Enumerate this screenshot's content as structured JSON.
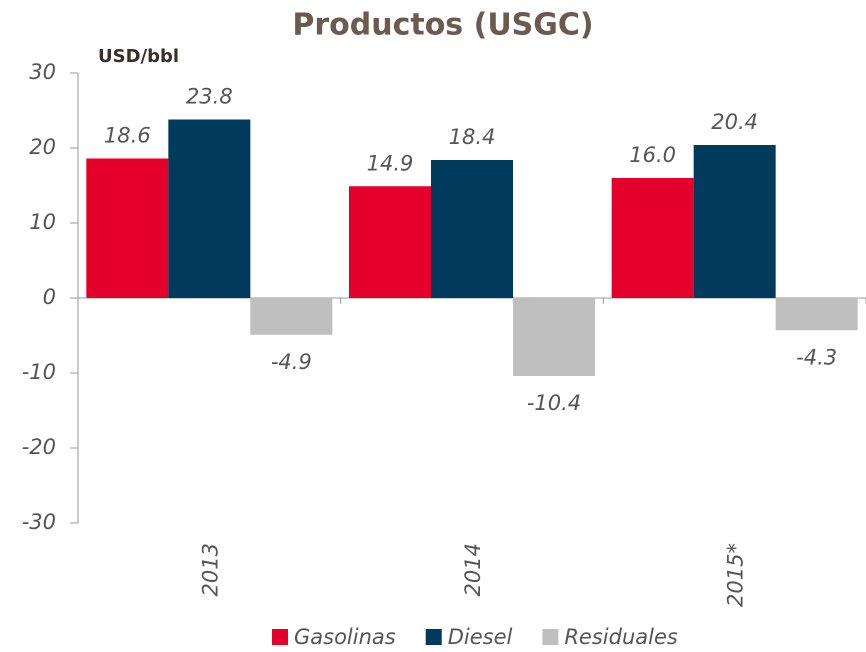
{
  "chart_data": {
    "type": "bar",
    "title": "Productos (USGC)",
    "y_axis_label": "USD/bbl",
    "categories": [
      "2013",
      "2014",
      "2015*"
    ],
    "series": [
      {
        "name": "Gasolinas",
        "color": "#e4002b",
        "values": [
          18.6,
          14.9,
          16.0
        ],
        "value_labels": [
          "18.6",
          "14.9",
          "16.0"
        ]
      },
      {
        "name": "Diesel",
        "color": "#003a5d",
        "values": [
          23.8,
          18.4,
          20.4
        ],
        "value_labels": [
          "23.8",
          "18.4",
          "20.4"
        ]
      },
      {
        "name": "Residuales",
        "color": "#bfbfbf",
        "values": [
          -4.9,
          -10.4,
          -4.3
        ],
        "value_labels": [
          "-4.9",
          "-10.4",
          "-4.3"
        ]
      }
    ],
    "ylim": [
      -30,
      30
    ],
    "yticks": [
      -30,
      -20,
      -10,
      0,
      10,
      20,
      30
    ],
    "legend": "bottom"
  }
}
